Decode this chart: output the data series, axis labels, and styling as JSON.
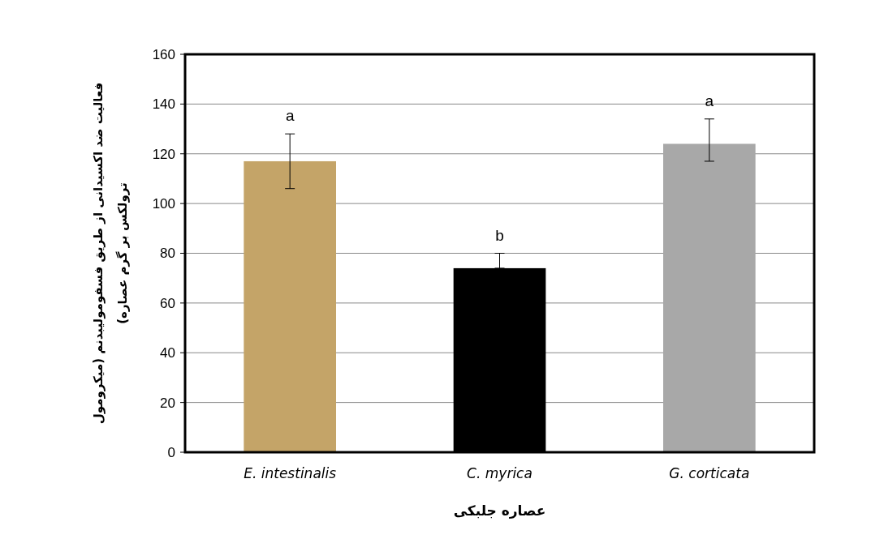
{
  "chart_data": {
    "type": "bar",
    "categories": [
      "E. intestinalis",
      "C. myrica",
      "G. corticata"
    ],
    "values": [
      117,
      74,
      124
    ],
    "colors": [
      "#c4a468",
      "#000000",
      "#a8a8a8"
    ],
    "errors": [
      [
        106,
        128
      ],
      [
        74,
        80
      ],
      [
        117,
        134
      ]
    ],
    "xlabel": "عصاره جلبکی",
    "ylabel": "فعالیت ضد اکسیدانی از طریق فسفومولیبدنم (میکرومول\nترولکس بر گرم عصاره)",
    "ylim": [
      0,
      160
    ],
    "yticks": [
      0,
      20,
      40,
      60,
      80,
      100,
      120,
      140,
      160
    ],
    "grid": "y",
    "annotations": [
      "a",
      "b",
      "a"
    ]
  }
}
